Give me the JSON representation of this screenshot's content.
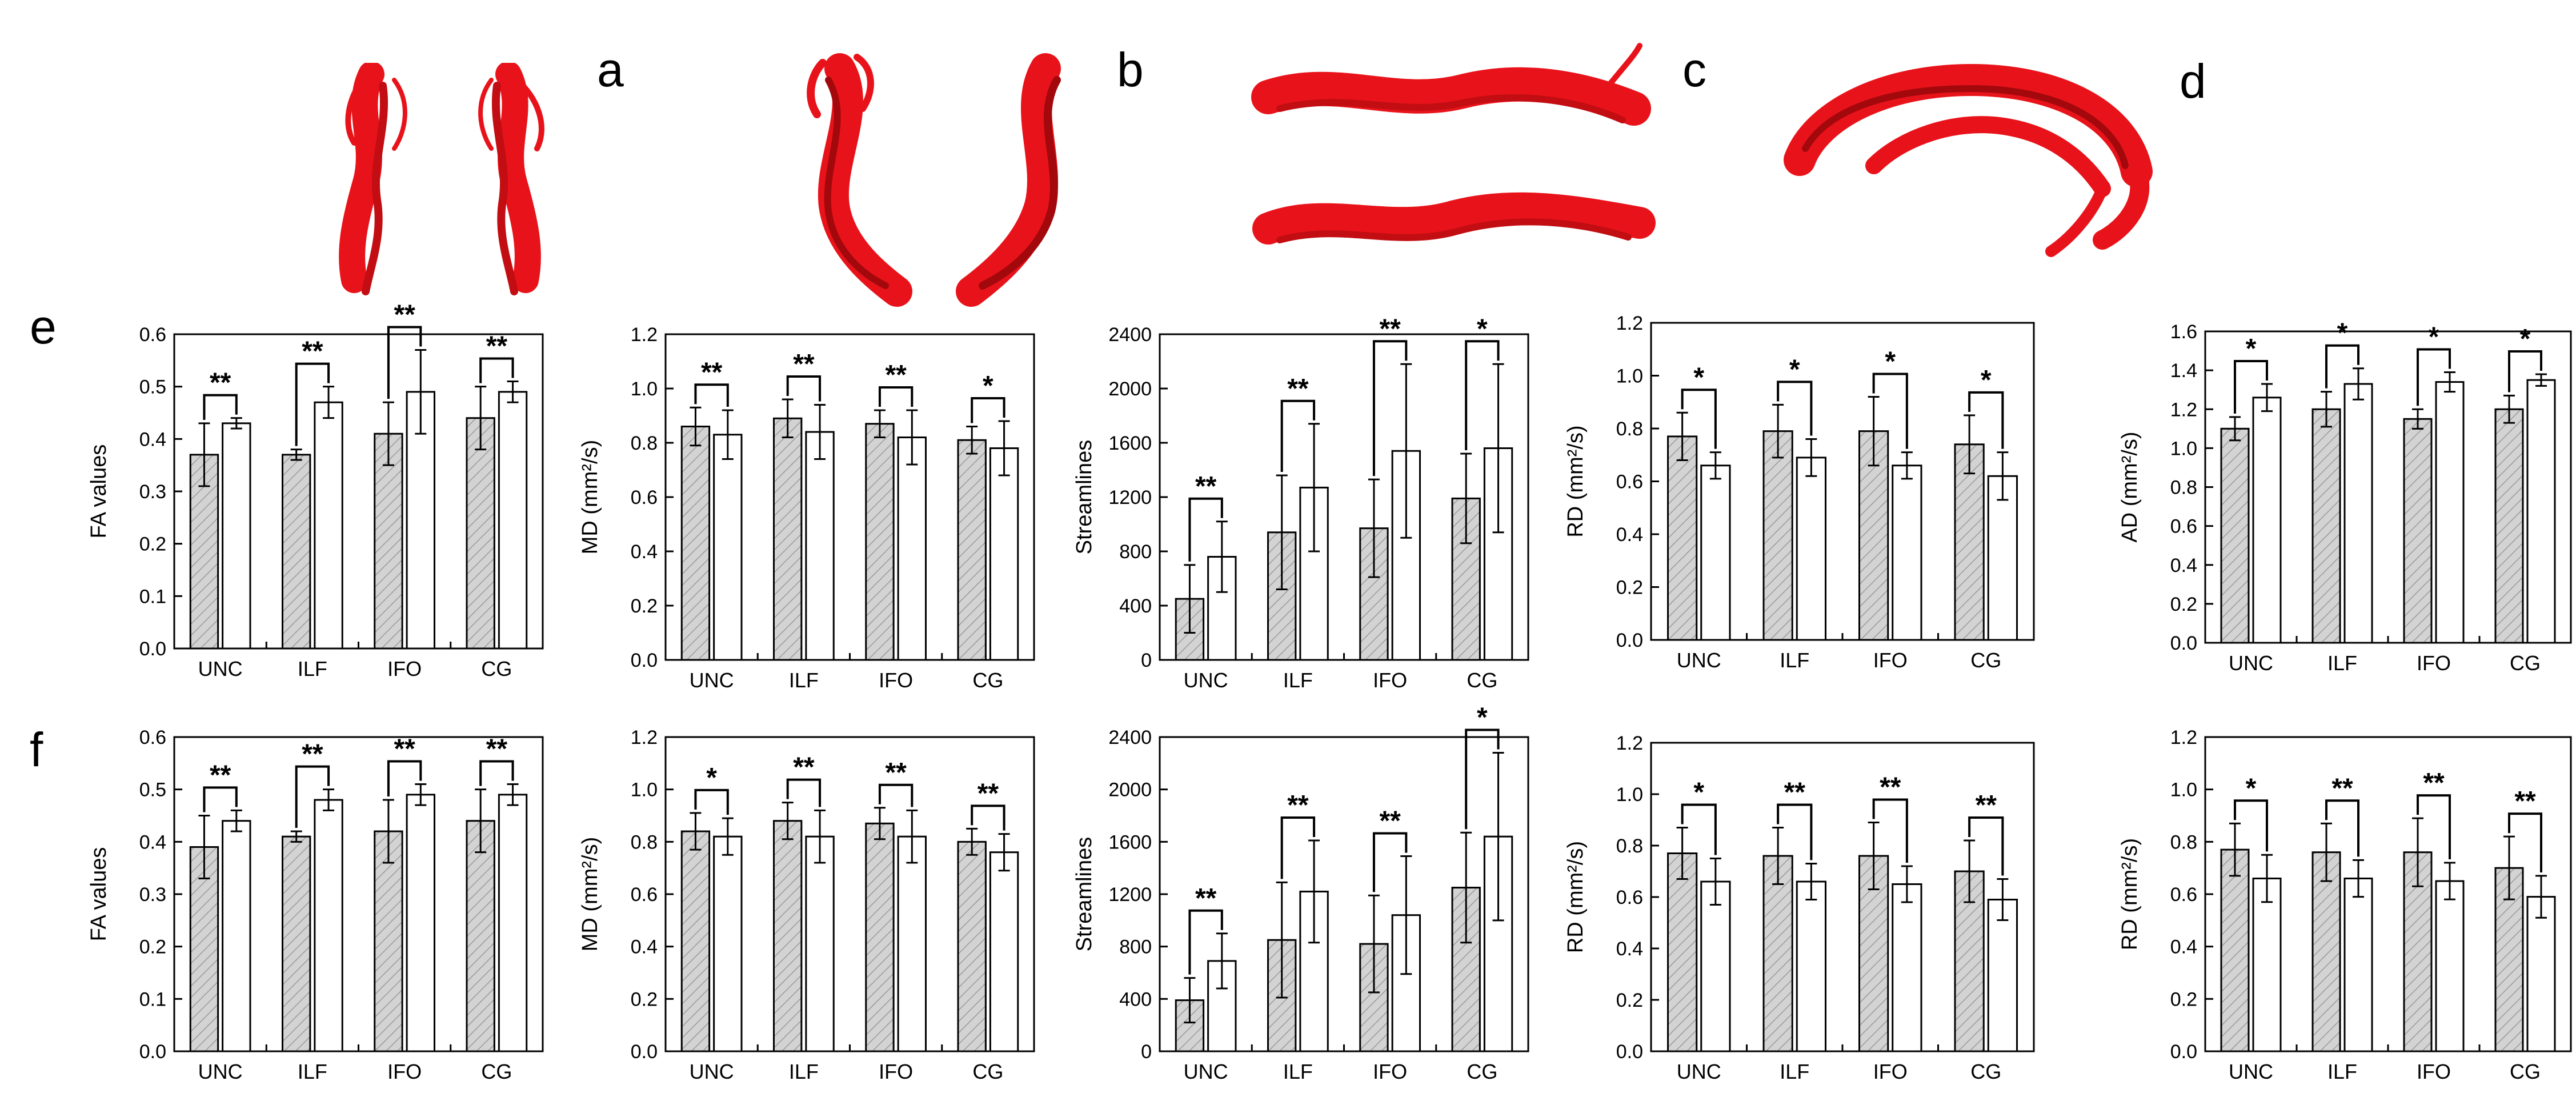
{
  "panel_labels": {
    "a": "a",
    "b": "b",
    "c": "c",
    "d": "d",
    "e": "e",
    "f": "f"
  },
  "tract_images": [
    {
      "name": "uncinate",
      "description": ""
    },
    {
      "name": "inferior-longitudinal",
      "description": ""
    },
    {
      "name": "inferior-fronto-occipital",
      "description": ""
    },
    {
      "name": "cingulum",
      "description": ""
    }
  ],
  "colors": {
    "tract": "#e8131a",
    "tract_dark": "#a3080c",
    "bar_hatched_fill": "#d3d3d3",
    "bar_open_fill": "#ffffff",
    "axis": "#000000"
  },
  "chart_data": [
    {
      "type": "bar",
      "row": "e",
      "categories": [
        "UNC",
        "ILF",
        "IFO",
        "CG"
      ],
      "ylabel": "FA values",
      "yticks": [
        "0.0",
        "0.1",
        "0.2",
        "0.3",
        "0.4",
        "0.5",
        "0.6"
      ],
      "ylim": [
        0,
        0.6
      ],
      "series": [
        {
          "values": [
            0.37,
            0.37,
            0.41,
            0.44
          ],
          "errors": [
            0.06,
            0.01,
            0.06,
            0.06
          ]
        },
        {
          "values": [
            0.43,
            0.47,
            0.49,
            0.49
          ],
          "errors": [
            0.01,
            0.03,
            0.08,
            0.02
          ]
        }
      ],
      "significance": [
        "**",
        "**",
        "**",
        "**"
      ]
    },
    {
      "type": "bar",
      "row": "e",
      "categories": [
        "UNC",
        "ILF",
        "IFO",
        "CG"
      ],
      "ylabel": "MD (mm²/s)",
      "yticks": [
        "0.0",
        "0.2",
        "0.4",
        "0.6",
        "0.8",
        "1.0",
        "1.2"
      ],
      "ylim": [
        0,
        1.2
      ],
      "series": [
        {
          "values": [
            0.86,
            0.89,
            0.87,
            0.81
          ],
          "errors": [
            0.07,
            0.07,
            0.05,
            0.05
          ]
        },
        {
          "values": [
            0.83,
            0.84,
            0.82,
            0.78
          ],
          "errors": [
            0.09,
            0.1,
            0.1,
            0.1
          ]
        }
      ],
      "significance": [
        "**",
        "**",
        "**",
        "*"
      ]
    },
    {
      "type": "bar",
      "row": "e",
      "categories": [
        "UNC",
        "ILF",
        "IFO",
        "CG"
      ],
      "ylabel": "Streamlines",
      "yticks": [
        "0",
        "400",
        "800",
        "1200",
        "1600",
        "2000",
        "2400"
      ],
      "ylim": [
        0,
        2400
      ],
      "series": [
        {
          "values": [
            450,
            940,
            970,
            1190
          ],
          "errors": [
            250,
            420,
            360,
            330
          ]
        },
        {
          "values": [
            760,
            1270,
            1540,
            1560
          ],
          "errors": [
            260,
            470,
            640,
            620
          ]
        }
      ],
      "significance": [
        "**",
        "**",
        "**",
        "*"
      ]
    },
    {
      "type": "bar",
      "row": "e",
      "categories": [
        "UNC",
        "ILF",
        "IFO",
        "CG"
      ],
      "ylabel": "RD (mm²/s)",
      "yticks": [
        "0.0",
        "0.2",
        "0.4",
        "0.6",
        "0.8",
        "1.0",
        "1.2"
      ],
      "ylim": [
        0,
        1.2
      ],
      "series": [
        {
          "values": [
            0.77,
            0.79,
            0.79,
            0.74
          ],
          "errors": [
            0.09,
            0.1,
            0.13,
            0.11
          ]
        },
        {
          "values": [
            0.66,
            0.69,
            0.66,
            0.62
          ],
          "errors": [
            0.05,
            0.07,
            0.05,
            0.09
          ]
        }
      ],
      "significance": [
        "*",
        "*",
        "*",
        "*"
      ]
    },
    {
      "type": "bar",
      "row": "e",
      "categories": [
        "UNC",
        "ILF",
        "IFO",
        "CG"
      ],
      "ylabel": "AD (mm²/s)",
      "yticks": [
        "0.0",
        "0.2",
        "0.4",
        "0.6",
        "0.8",
        "1.0",
        "1.2",
        "1.4",
        "1.6"
      ],
      "ylim": [
        0,
        1.6
      ],
      "series": [
        {
          "values": [
            1.1,
            1.2,
            1.15,
            1.2
          ],
          "errors": [
            0.06,
            0.09,
            0.05,
            0.07
          ]
        },
        {
          "values": [
            1.26,
            1.33,
            1.34,
            1.35
          ],
          "errors": [
            0.07,
            0.08,
            0.05,
            0.03
          ]
        }
      ],
      "significance": [
        "*",
        "*",
        "*",
        "*"
      ]
    },
    {
      "type": "bar",
      "row": "f",
      "categories": [
        "UNC",
        "ILF",
        "IFO",
        "CG"
      ],
      "ylabel": "FA values",
      "yticks": [
        "0.0",
        "0.1",
        "0.2",
        "0.3",
        "0.4",
        "0.5",
        "0.6"
      ],
      "ylim": [
        0,
        0.6
      ],
      "series": [
        {
          "values": [
            0.39,
            0.41,
            0.42,
            0.44
          ],
          "errors": [
            0.06,
            0.01,
            0.06,
            0.06
          ]
        },
        {
          "values": [
            0.44,
            0.48,
            0.49,
            0.49
          ],
          "errors": [
            0.02,
            0.02,
            0.02,
            0.02
          ]
        }
      ],
      "significance": [
        "**",
        "**",
        "**",
        "**"
      ]
    },
    {
      "type": "bar",
      "row": "f",
      "categories": [
        "UNC",
        "ILF",
        "IFO",
        "CG"
      ],
      "ylabel": "MD (mm²/s)",
      "yticks": [
        "0.0",
        "0.2",
        "0.4",
        "0.6",
        "0.8",
        "1.0",
        "1.2"
      ],
      "ylim": [
        0,
        1.2
      ],
      "series": [
        {
          "values": [
            0.84,
            0.88,
            0.87,
            0.8
          ],
          "errors": [
            0.07,
            0.07,
            0.06,
            0.05
          ]
        },
        {
          "values": [
            0.82,
            0.82,
            0.82,
            0.76
          ],
          "errors": [
            0.07,
            0.1,
            0.1,
            0.07
          ]
        }
      ],
      "significance": [
        "*",
        "**",
        "**",
        "**"
      ]
    },
    {
      "type": "bar",
      "row": "f",
      "categories": [
        "UNC",
        "ILF",
        "IFO",
        "CG"
      ],
      "ylabel": "Streamlines",
      "yticks": [
        "0",
        "400",
        "800",
        "1200",
        "1600",
        "2000",
        "2400"
      ],
      "ylim": [
        0,
        2400
      ],
      "series": [
        {
          "values": [
            390,
            850,
            820,
            1250
          ],
          "errors": [
            170,
            440,
            370,
            420
          ]
        },
        {
          "values": [
            690,
            1220,
            1040,
            1640
          ],
          "errors": [
            210,
            390,
            450,
            640
          ]
        }
      ],
      "significance": [
        "**",
        "**",
        "**",
        "*"
      ]
    },
    {
      "type": "bar",
      "row": "f",
      "categories": [
        "UNC",
        "ILF",
        "IFO",
        "CG"
      ],
      "ylabel": "RD (mm²/s)",
      "yticks": [
        "0.0",
        "0.2",
        "0.4",
        "0.6",
        "0.8",
        "1.0",
        "1.2"
      ],
      "ylim": [
        0,
        1.2
      ],
      "series": [
        {
          "values": [
            0.77,
            0.76,
            0.76,
            0.7
          ],
          "errors": [
            0.1,
            0.11,
            0.13,
            0.12
          ]
        },
        {
          "values": [
            0.66,
            0.66,
            0.65,
            0.59
          ],
          "errors": [
            0.09,
            0.07,
            0.07,
            0.08
          ]
        }
      ],
      "significance": [
        "*",
        "**",
        "**",
        "**"
      ]
    },
    {
      "type": "bar",
      "row": "f",
      "categories": [
        "UNC",
        "ILF",
        "IFO",
        "CG"
      ],
      "ylabel": "RD (mm²/s)",
      "yticks": [
        "0.0",
        "0.2",
        "0.4",
        "0.6",
        "0.8",
        "1.0",
        "1.2"
      ],
      "ylim": [
        0,
        1.2
      ],
      "series": [
        {
          "values": [
            0.77,
            0.76,
            0.76,
            0.7
          ],
          "errors": [
            0.1,
            0.11,
            0.13,
            0.12
          ]
        },
        {
          "values": [
            0.66,
            0.66,
            0.65,
            0.59
          ],
          "errors": [
            0.09,
            0.07,
            0.07,
            0.08
          ]
        }
      ],
      "significance": [
        "*",
        "**",
        "**",
        "**"
      ]
    }
  ]
}
